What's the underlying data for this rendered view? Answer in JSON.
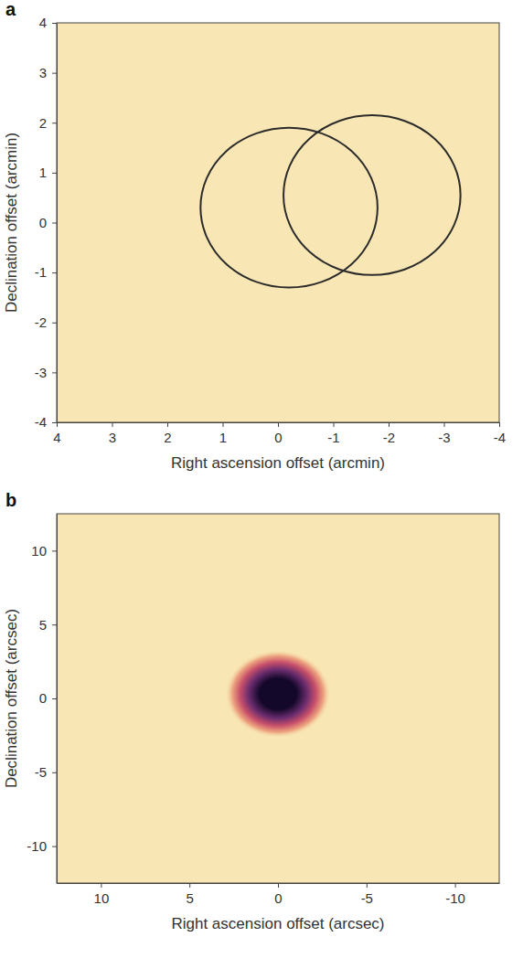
{
  "chart_data": [
    {
      "type": "heatmap",
      "title": "a",
      "x_label": "Right ascension offset (arcmin)",
      "y_label": "Declination offset (arcmin)",
      "xlim": [
        4,
        -4
      ],
      "ylim": [
        -4,
        4
      ],
      "xticks": [
        4,
        3,
        2,
        1,
        0,
        -1,
        -2,
        -3,
        -4
      ],
      "yticks": [
        -4,
        -3,
        -2,
        -1,
        0,
        1,
        2,
        3,
        4
      ],
      "color": "#2b2b2b",
      "circles": [
        {
          "x": -0.2,
          "y": 0.3,
          "r": 1.6
        },
        {
          "x": -1.7,
          "y": 0.55,
          "r": 1.6
        }
      ]
    },
    {
      "type": "heatmap",
      "title": "b",
      "x_label": "Right ascension offset (arcsec)",
      "y_label": "Declination offset (arcsec)",
      "xlim": [
        12.5,
        -12.5
      ],
      "ylim": [
        -12.5,
        12.5
      ],
      "xticks": [
        10,
        5,
        0,
        -5,
        -10
      ],
      "yticks": [
        -10,
        -5,
        0,
        5,
        10
      ],
      "color": "#14082a",
      "source": {
        "x": 0,
        "y": 0.3,
        "radius": 3
      }
    }
  ]
}
